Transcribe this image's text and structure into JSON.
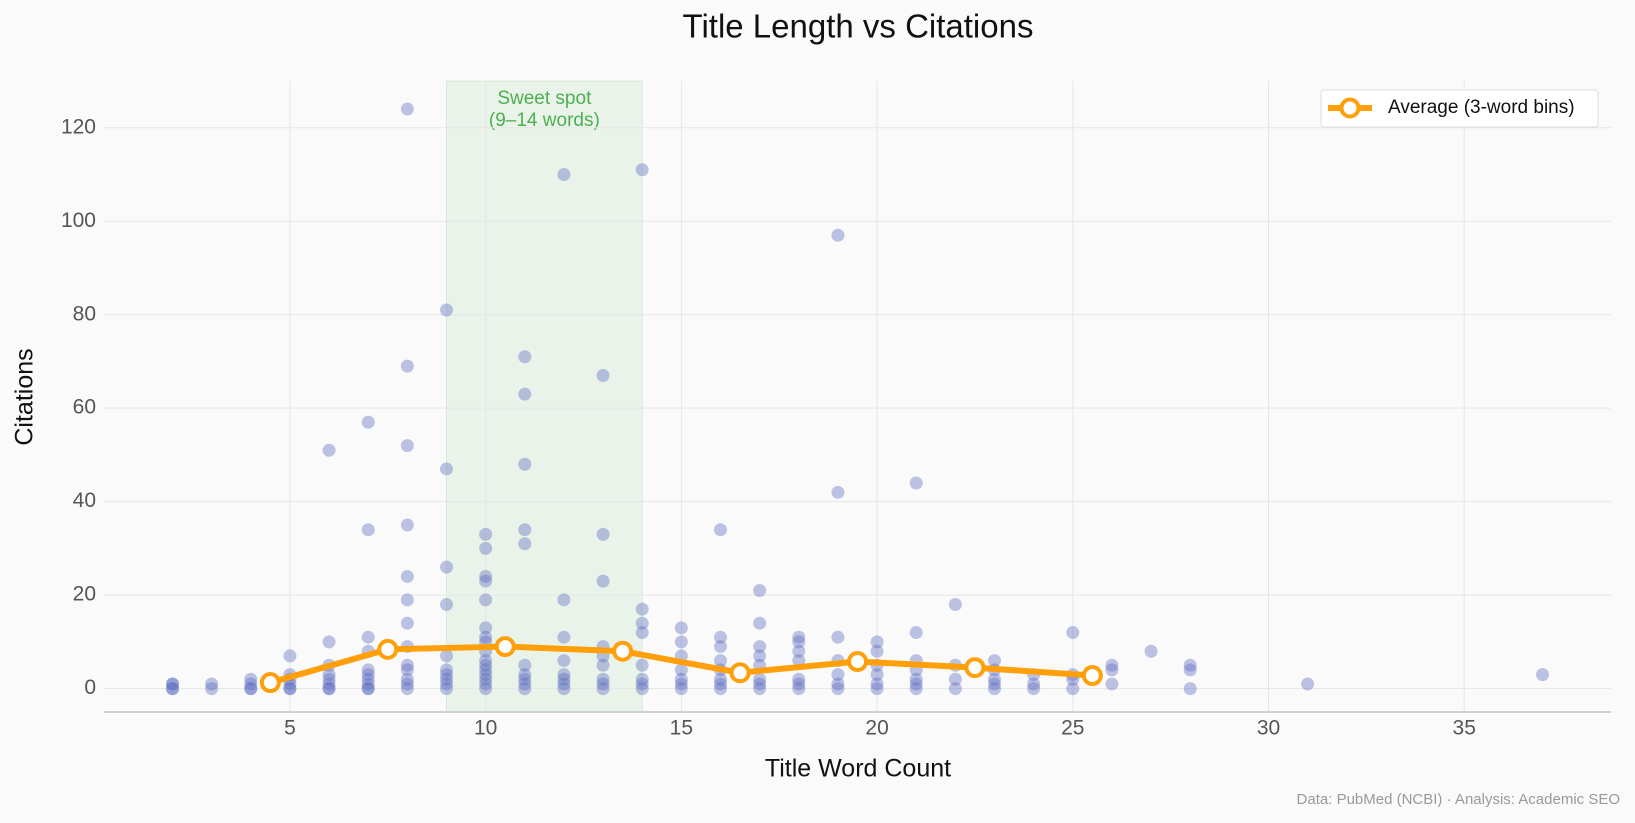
{
  "chart_data": {
    "type": "scatter",
    "title": "Title Length vs Citations",
    "x_label": "Title Word Count",
    "y_label": "Citations",
    "source": "Data: PubMed (NCBI) · Analysis: Academic SEO",
    "color": "#5c6bc0",
    "x": [
      2,
      2,
      2,
      2,
      3,
      3,
      4,
      4,
      4,
      4,
      5,
      5,
      5,
      5,
      5,
      5,
      6,
      6,
      6,
      6,
      6,
      6,
      6,
      6,
      7,
      7,
      7,
      7,
      7,
      7,
      7,
      7,
      7,
      7,
      8,
      8,
      8,
      8,
      8,
      8,
      8,
      8,
      8,
      8,
      8,
      8,
      8,
      9,
      9,
      9,
      9,
      9,
      9,
      9,
      9,
      9,
      9,
      10,
      10,
      10,
      10,
      10,
      10,
      10,
      10,
      10,
      10,
      10,
      10,
      10,
      10,
      10,
      10,
      11,
      11,
      11,
      11,
      11,
      11,
      11,
      11,
      11,
      11,
      12,
      12,
      12,
      12,
      12,
      12,
      12,
      12,
      13,
      13,
      13,
      13,
      13,
      13,
      13,
      13,
      13,
      14,
      14,
      14,
      14,
      14,
      14,
      14,
      14,
      15,
      15,
      15,
      15,
      15,
      15,
      15,
      16,
      16,
      16,
      16,
      16,
      16,
      16,
      16,
      17,
      17,
      17,
      17,
      17,
      17,
      17,
      17,
      18,
      18,
      18,
      18,
      18,
      18,
      18,
      19,
      19,
      19,
      19,
      19,
      19,
      19,
      20,
      20,
      20,
      20,
      20,
      20,
      21,
      21,
      21,
      21,
      21,
      21,
      21,
      22,
      22,
      22,
      22,
      23,
      23,
      23,
      23,
      23,
      24,
      24,
      24,
      25,
      25,
      25,
      25,
      26,
      26,
      26,
      27,
      28,
      28,
      28,
      31,
      37
    ],
    "values": [
      0,
      1,
      0,
      1,
      0,
      1,
      0,
      2,
      1,
      0,
      0,
      1,
      3,
      7,
      0,
      2,
      0,
      10,
      5,
      51,
      2,
      1,
      0,
      3,
      0,
      57,
      34,
      11,
      8,
      4,
      2,
      1,
      0,
      3,
      124,
      69,
      52,
      35,
      24,
      19,
      14,
      9,
      5,
      2,
      1,
      0,
      4,
      81,
      47,
      26,
      18,
      7,
      4,
      3,
      2,
      1,
      0,
      33,
      30,
      24,
      23,
      19,
      13,
      11,
      10,
      8,
      6,
      5,
      4,
      3,
      2,
      1,
      0,
      71,
      63,
      48,
      34,
      31,
      5,
      3,
      2,
      1,
      0,
      110,
      19,
      11,
      6,
      3,
      2,
      1,
      0,
      67,
      33,
      23,
      9,
      7,
      5,
      2,
      1,
      0,
      111,
      17,
      14,
      12,
      5,
      2,
      1,
      0,
      13,
      10,
      7,
      4,
      2,
      1,
      0,
      34,
      11,
      9,
      6,
      4,
      2,
      1,
      0,
      21,
      14,
      9,
      7,
      5,
      2,
      1,
      0,
      11,
      10,
      8,
      6,
      2,
      1,
      0,
      97,
      42,
      11,
      6,
      3,
      1,
      0,
      10,
      8,
      5,
      3,
      1,
      0,
      44,
      12,
      6,
      4,
      2,
      1,
      0,
      18,
      5,
      2,
      0,
      6,
      4,
      2,
      1,
      0,
      3,
      1,
      0,
      12,
      3,
      2,
      0,
      5,
      4,
      1,
      8,
      5,
      4,
      0,
      1,
      3
    ],
    "series": [
      {
        "name": "Average (3-word bins)",
        "type": "line",
        "color": "#ff9f0a",
        "x": [
          4.5,
          7.5,
          10.5,
          13.5,
          16.5,
          19.5,
          22.5,
          25.5
        ],
        "values": [
          1.3,
          8.4,
          9.0,
          8.0,
          3.4,
          5.8,
          4.5,
          2.8
        ]
      }
    ],
    "highlight": {
      "range": [
        9,
        14
      ],
      "color": "#4caf50",
      "label": [
        "Sweet spot",
        "(9–14 words)"
      ]
    },
    "xlim": [
      0.25,
      38.75
    ],
    "ylim": [
      -5,
      130
    ],
    "xticks": [
      5,
      10,
      15,
      20,
      25,
      30,
      35
    ],
    "yticks": [
      0,
      20,
      40,
      60,
      80,
      100,
      120
    ],
    "grid": true,
    "legend": "upper right"
  }
}
